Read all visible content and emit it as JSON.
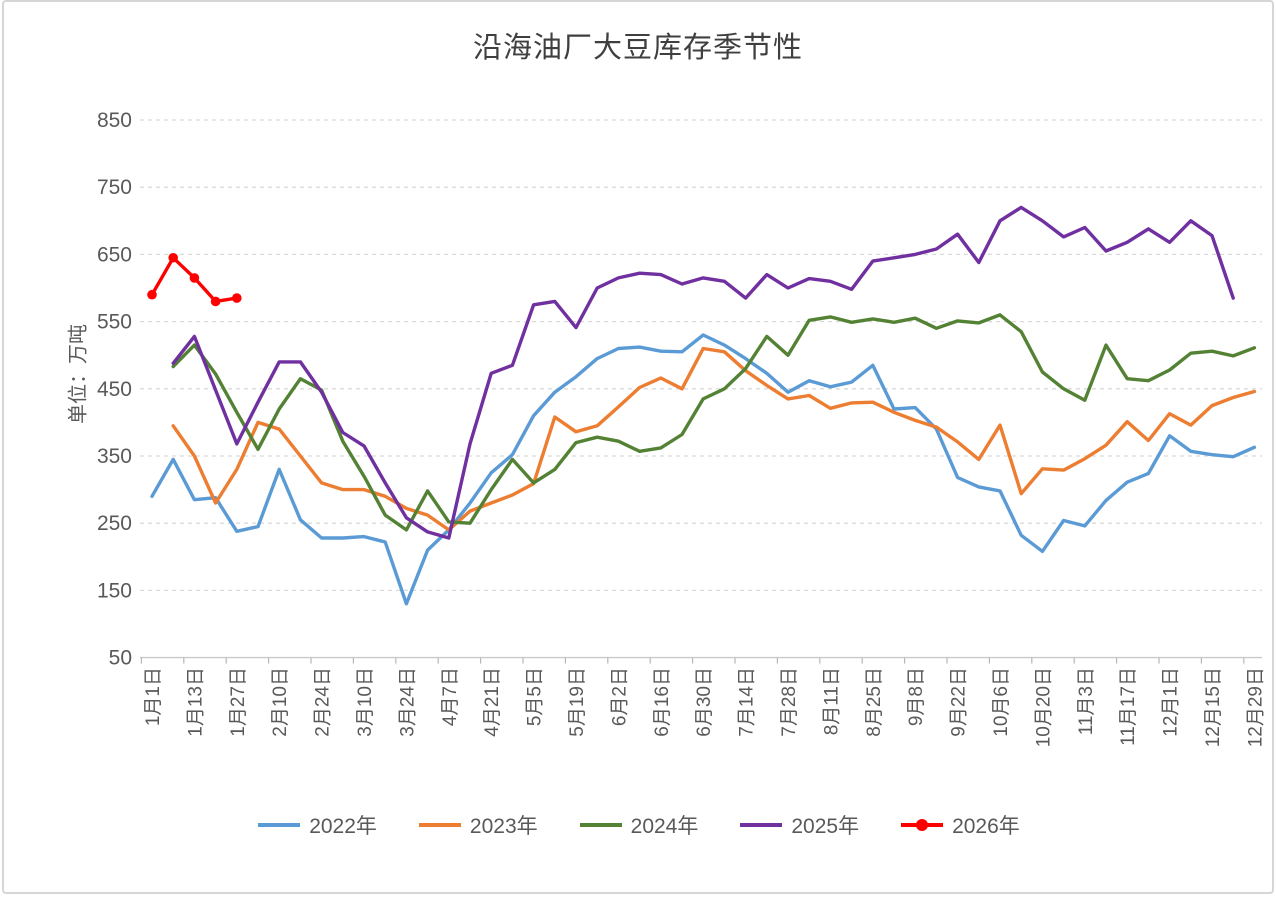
{
  "chart_data": {
    "type": "line",
    "title": "沿海油厂大豆库存季节性",
    "ylabel": "单位：万吨",
    "ylim": [
      50,
      850
    ],
    "yticks": [
      850,
      750,
      650,
      550,
      450,
      350,
      250,
      150,
      50
    ],
    "grid": "horizontal-dashed",
    "grid_color": "#d9d9d9",
    "axis_text_color": "#595959",
    "legend_position": "bottom",
    "n_points": 53,
    "x_labels_every": 2,
    "x_labels": [
      "1月1日",
      "1月13日",
      "1月27日",
      "2月10日",
      "2月24日",
      "3月10日",
      "3月24日",
      "4月7日",
      "4月21日",
      "5月5日",
      "5月19日",
      "6月2日",
      "6月16日",
      "6月30日",
      "7月14日",
      "7月28日",
      "8月11日",
      "8月25日",
      "9月8日",
      "9月22日",
      "10月6日",
      "10月20日",
      "11月3日",
      "11月17日",
      "12月1日",
      "12月15日",
      "12月29日"
    ],
    "series": [
      {
        "name": "2022年",
        "color": "#5B9BD5",
        "marker": false,
        "values": [
          290,
          345,
          285,
          288,
          238,
          245,
          330,
          255,
          228,
          228,
          230,
          222,
          130,
          210,
          240,
          280,
          325,
          352,
          410,
          445,
          468,
          495,
          510,
          512,
          506,
          505,
          530,
          515,
          495,
          473,
          445,
          462,
          453,
          460,
          485,
          420,
          422,
          390,
          318,
          304,
          298,
          232,
          208,
          254,
          246,
          284,
          311,
          324,
          380,
          357,
          352,
          349,
          363
        ]
      },
      {
        "name": "2023年",
        "color": "#ED7D31",
        "marker": false,
        "values": [
          null,
          395,
          350,
          280,
          330,
          400,
          390,
          350,
          310,
          300,
          300,
          290,
          272,
          262,
          240,
          268,
          280,
          292,
          309,
          408,
          386,
          395,
          423,
          452,
          466,
          450,
          510,
          505,
          477,
          455,
          435,
          440,
          421,
          429,
          430,
          415,
          403,
          393,
          371,
          345,
          396,
          294,
          331,
          329,
          346,
          366,
          401,
          373,
          413,
          396,
          425,
          437,
          446
        ]
      },
      {
        "name": "2024年",
        "color": "#548235",
        "marker": false,
        "values": [
          null,
          483,
          515,
          472,
          415,
          360,
          420,
          465,
          448,
          372,
          320,
          262,
          240,
          298,
          252,
          250,
          300,
          345,
          310,
          330,
          370,
          378,
          372,
          357,
          362,
          382,
          435,
          450,
          480,
          528,
          500,
          552,
          557,
          549,
          554,
          549,
          555,
          540,
          551,
          548,
          560,
          535,
          475,
          450,
          433,
          515,
          465,
          462,
          478,
          503,
          506,
          499,
          511
        ]
      },
      {
        "name": "2025年",
        "color": "#7030A0",
        "marker": false,
        "values": [
          null,
          488,
          528,
          448,
          368,
          430,
          490,
          490,
          445,
          385,
          365,
          310,
          258,
          237,
          228,
          368,
          473,
          485,
          575,
          580,
          541,
          600,
          615,
          622,
          620,
          606,
          615,
          610,
          585,
          620,
          600,
          614,
          610,
          598,
          640,
          645,
          650,
          658,
          680,
          638,
          700,
          720,
          700,
          676,
          690,
          655,
          668,
          688,
          668,
          700,
          678,
          585,
          null
        ]
      },
      {
        "name": "2026年",
        "color": "#FF0000",
        "marker": true,
        "values": [
          590,
          645,
          615,
          580,
          585,
          null,
          null,
          null,
          null,
          null,
          null,
          null,
          null,
          null,
          null,
          null,
          null,
          null,
          null,
          null,
          null,
          null,
          null,
          null,
          null,
          null,
          null,
          null,
          null,
          null,
          null,
          null,
          null,
          null,
          null,
          null,
          null,
          null,
          null,
          null,
          null,
          null,
          null,
          null,
          null,
          null,
          null,
          null,
          null,
          null,
          null,
          null,
          null
        ]
      }
    ]
  }
}
